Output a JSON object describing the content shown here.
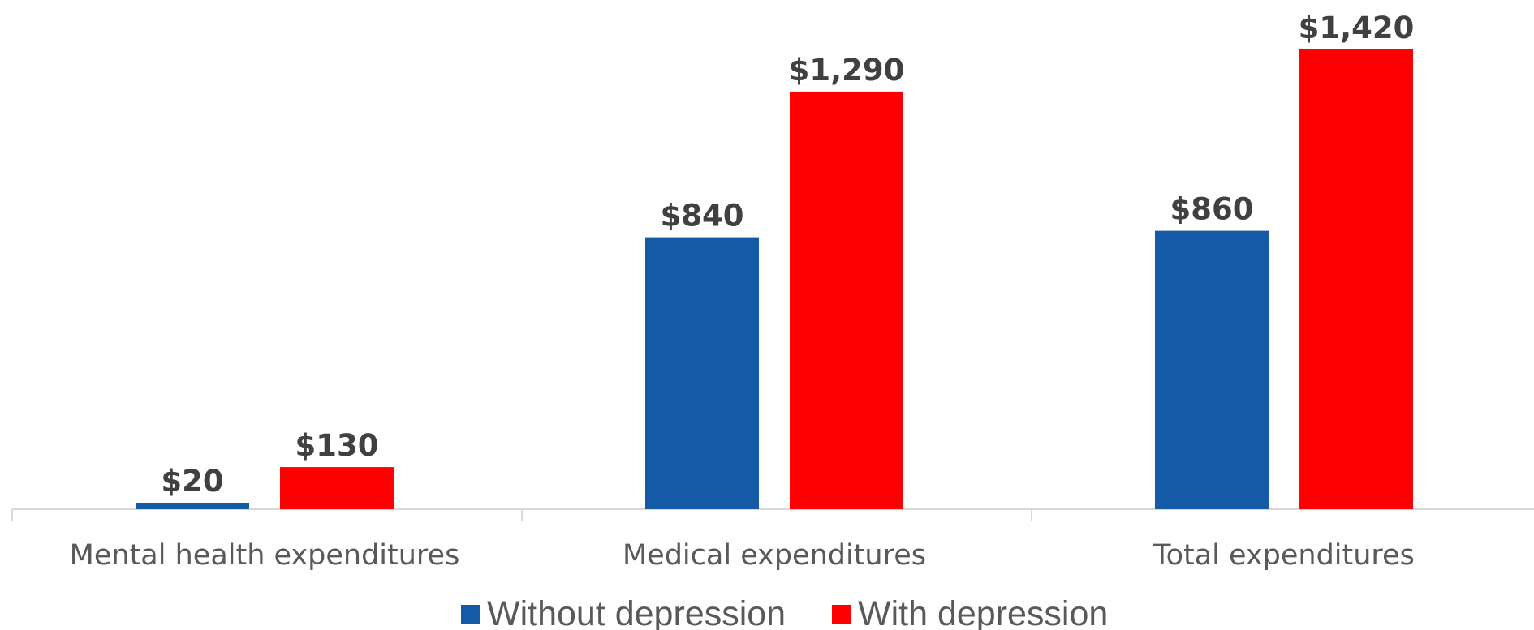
{
  "chart_data": {
    "type": "bar",
    "categories": [
      "Mental health expenditures",
      "Medical expenditures",
      "Total expenditures"
    ],
    "series": [
      {
        "name": "Without depression",
        "values": [
          20,
          840,
          860
        ],
        "labels": [
          "$20",
          "$840",
          "$860"
        ],
        "color": "#145AA6"
      },
      {
        "name": "With depression",
        "values": [
          130,
          1290,
          1420
        ],
        "labels": [
          "$130",
          "$1,290",
          "$1,420"
        ],
        "color": "#FF0000"
      }
    ],
    "title": "",
    "xlabel": "",
    "ylabel": "",
    "ylim": [
      0,
      1450
    ],
    "grid": false,
    "legend_position": "bottom",
    "axis_color": "#D9D9D9"
  }
}
